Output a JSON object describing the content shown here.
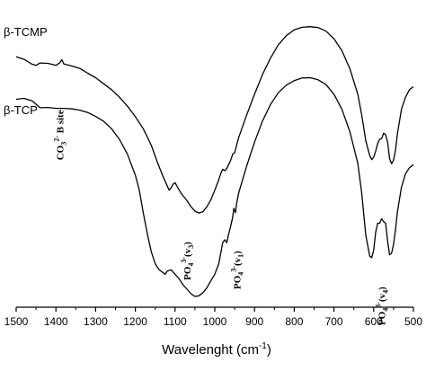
{
  "chart_data": {
    "type": "line",
    "title": "",
    "xlabel": "Wavelenght (cm",
    "xlabel_sup": "-1",
    "xlabel_close": ")",
    "ylabel": "",
    "xlim": [
      1500,
      500
    ],
    "x_reversed": true,
    "ylim": [
      0,
      100
    ],
    "grid": false,
    "xticks": [
      1500,
      1400,
      1300,
      1200,
      1100,
      1000,
      900,
      800,
      700,
      600,
      500
    ],
    "series": [
      {
        "name": "β-TCMP",
        "points": [
          [
            1500,
            83.5
          ],
          [
            1480,
            82.6
          ],
          [
            1460,
            81.0
          ],
          [
            1450,
            80.6
          ],
          [
            1440,
            81.4
          ],
          [
            1420,
            81.3
          ],
          [
            1400,
            80.6
          ],
          [
            1390,
            81.5
          ],
          [
            1385,
            82.5
          ],
          [
            1380,
            81.1
          ],
          [
            1360,
            80.4
          ],
          [
            1340,
            79.6
          ],
          [
            1320,
            78.0
          ],
          [
            1300,
            76.5
          ],
          [
            1280,
            74.5
          ],
          [
            1260,
            72.5
          ],
          [
            1240,
            70.0
          ],
          [
            1220,
            67.0
          ],
          [
            1200,
            63.5
          ],
          [
            1180,
            59.5
          ],
          [
            1160,
            54.0
          ],
          [
            1145,
            48.5
          ],
          [
            1130,
            43.5
          ],
          [
            1120,
            40.5
          ],
          [
            1115,
            39.0
          ],
          [
            1110,
            39.8
          ],
          [
            1105,
            41.0
          ],
          [
            1100,
            41.5
          ],
          [
            1095,
            40.3
          ],
          [
            1085,
            38.0
          ],
          [
            1070,
            35.5
          ],
          [
            1060,
            33.5
          ],
          [
            1050,
            32.0
          ],
          [
            1040,
            31.4
          ],
          [
            1030,
            31.8
          ],
          [
            1020,
            33.5
          ],
          [
            1010,
            35.8
          ],
          [
            1000,
            39.0
          ],
          [
            990,
            42.5
          ],
          [
            985,
            44.5
          ],
          [
            980,
            46.0
          ],
          [
            975,
            45.5
          ],
          [
            970,
            46.2
          ],
          [
            965,
            47.6
          ],
          [
            960,
            49.0
          ],
          [
            955,
            51.0
          ],
          [
            950,
            51.5
          ],
          [
            945,
            54.0
          ],
          [
            940,
            56.5
          ],
          [
            920,
            64.0
          ],
          [
            900,
            71.0
          ],
          [
            880,
            77.5
          ],
          [
            860,
            83.0
          ],
          [
            840,
            87.5
          ],
          [
            820,
            90.5
          ],
          [
            800,
            92.5
          ],
          [
            780,
            93.3
          ],
          [
            760,
            93.5
          ],
          [
            740,
            93.2
          ],
          [
            720,
            92.0
          ],
          [
            700,
            89.5
          ],
          [
            680,
            85.5
          ],
          [
            660,
            79.5
          ],
          [
            640,
            71.0
          ],
          [
            630,
            64.0
          ],
          [
            620,
            55.5
          ],
          [
            610,
            50.5
          ],
          [
            605,
            49.2
          ],
          [
            600,
            50.0
          ],
          [
            595,
            52.0
          ],
          [
            590,
            54.5
          ],
          [
            585,
            56.0
          ],
          [
            580,
            56.2
          ],
          [
            575,
            58.0
          ],
          [
            570,
            57.5
          ],
          [
            565,
            55.0
          ],
          [
            560,
            49.5
          ],
          [
            555,
            47.8
          ],
          [
            550,
            49.0
          ],
          [
            545,
            52.5
          ],
          [
            540,
            58.0
          ],
          [
            530,
            66.0
          ],
          [
            520,
            70.0
          ],
          [
            510,
            72.5
          ],
          [
            500,
            73.5
          ]
        ]
      },
      {
        "name": "β-TCP",
        "points": [
          [
            1500,
            69.3
          ],
          [
            1480,
            69.6
          ],
          [
            1460,
            68.8
          ],
          [
            1440,
            66.5
          ],
          [
            1420,
            66.6
          ],
          [
            1400,
            66.3
          ],
          [
            1380,
            66.3
          ],
          [
            1360,
            66.1
          ],
          [
            1340,
            65.7
          ],
          [
            1320,
            64.9
          ],
          [
            1300,
            63.6
          ],
          [
            1280,
            62.0
          ],
          [
            1260,
            59.5
          ],
          [
            1240,
            56.0
          ],
          [
            1220,
            51.0
          ],
          [
            1200,
            44.0
          ],
          [
            1190,
            39.0
          ],
          [
            1180,
            31.5
          ],
          [
            1170,
            24.5
          ],
          [
            1160,
            18.5
          ],
          [
            1150,
            14.5
          ],
          [
            1140,
            12.5
          ],
          [
            1130,
            11.5
          ],
          [
            1125,
            11.0
          ],
          [
            1120,
            12.0
          ],
          [
            1110,
            12.5
          ],
          [
            1100,
            11.0
          ],
          [
            1090,
            9.5
          ],
          [
            1080,
            7.5
          ],
          [
            1070,
            6.0
          ],
          [
            1060,
            4.5
          ],
          [
            1050,
            3.6
          ],
          [
            1040,
            3.8
          ],
          [
            1030,
            4.8
          ],
          [
            1020,
            6.5
          ],
          [
            1010,
            8.8
          ],
          [
            1000,
            11.0
          ],
          [
            990,
            14.5
          ],
          [
            985,
            18.0
          ],
          [
            980,
            21.5
          ],
          [
            975,
            22.5
          ],
          [
            970,
            21.5
          ],
          [
            965,
            24.5
          ],
          [
            960,
            27.0
          ],
          [
            955,
            30.0
          ],
          [
            952,
            33.0
          ],
          [
            948,
            31.5
          ],
          [
            945,
            34.5
          ],
          [
            940,
            38.0
          ],
          [
            920,
            47.0
          ],
          [
            900,
            55.0
          ],
          [
            880,
            62.0
          ],
          [
            860,
            67.5
          ],
          [
            840,
            71.5
          ],
          [
            820,
            74.0
          ],
          [
            800,
            75.5
          ],
          [
            780,
            76.4
          ],
          [
            760,
            76.5
          ],
          [
            740,
            75.8
          ],
          [
            720,
            74.2
          ],
          [
            700,
            71.0
          ],
          [
            680,
            66.0
          ],
          [
            660,
            58.5
          ],
          [
            640,
            48.0
          ],
          [
            630,
            38.0
          ],
          [
            620,
            24.0
          ],
          [
            610,
            17.0
          ],
          [
            605,
            16.5
          ],
          [
            600,
            19.0
          ],
          [
            595,
            25.0
          ],
          [
            590,
            28.0
          ],
          [
            585,
            28.0
          ],
          [
            580,
            29.5
          ],
          [
            575,
            28.5
          ],
          [
            570,
            28.0
          ],
          [
            565,
            22.0
          ],
          [
            560,
            17.5
          ],
          [
            555,
            18.0
          ],
          [
            550,
            21.0
          ],
          [
            545,
            26.0
          ],
          [
            540,
            32.0
          ],
          [
            530,
            40.0
          ],
          [
            520,
            44.5
          ],
          [
            510,
            46.5
          ],
          [
            500,
            47.5
          ]
        ]
      }
    ],
    "annotations": [
      {
        "id": "co3",
        "base": "CO",
        "sub": "3",
        "sup": "2-",
        "rest": " B site",
        "x": 1390,
        "y": 49,
        "rotated": true
      },
      {
        "id": "po-v3",
        "base": "PO",
        "sub": "4",
        "sup": "3-",
        "rest": "(v",
        "rsub": "3",
        "end": ")",
        "x": 1070,
        "y": 9,
        "rotated": true
      },
      {
        "id": "po-v1",
        "base": "PO",
        "sub": "4",
        "sup": "3-",
        "rest": "(v",
        "rsub": "1",
        "end": ")",
        "x": 945,
        "y": 6,
        "rotated": true
      },
      {
        "id": "po-v4",
        "base": "PO",
        "sub": "4",
        "sup": "3-",
        "rest": "(v",
        "rsub": "4",
        "end": ")",
        "x": 580,
        "y": -6,
        "rotated": true
      }
    ]
  }
}
